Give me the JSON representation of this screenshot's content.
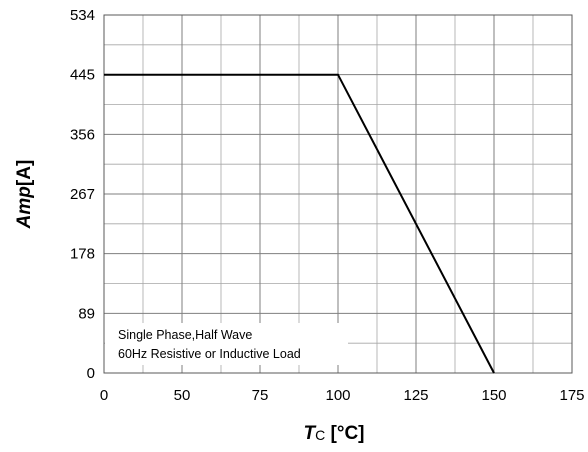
{
  "chart_data": {
    "type": "line",
    "x": [
      0,
      100,
      150
    ],
    "series": [
      {
        "values": [
          445,
          445,
          0
        ]
      }
    ],
    "x_ticks": [
      "0",
      "50",
      "75",
      "100",
      "125",
      "150",
      "175"
    ],
    "x_tick_values": [
      0,
      50,
      75,
      100,
      125,
      150,
      175
    ],
    "y_ticks": [
      "0",
      "89",
      "178",
      "267",
      "356",
      "445",
      "534"
    ],
    "y_tick_values": [
      0,
      89,
      178,
      267,
      356,
      445,
      534
    ],
    "xlim": [
      25,
      175
    ],
    "ylim": [
      0,
      534
    ],
    "x_axis_note": "tick label 0 drawn at the position of 25",
    "xlabel_prefix": "T",
    "xlabel_subscript": "C",
    "xlabel_suffix": " [°C]",
    "ylabel_prefix": "Amp",
    "ylabel_suffix": "[A]",
    "annotation_lines": [
      "Single Phase,Half Wave",
      "60Hz Resistive or Inductive Load"
    ],
    "grid": true,
    "minor_grid": true,
    "line_color": "#000000",
    "grid_color": "#7f7f7f"
  }
}
